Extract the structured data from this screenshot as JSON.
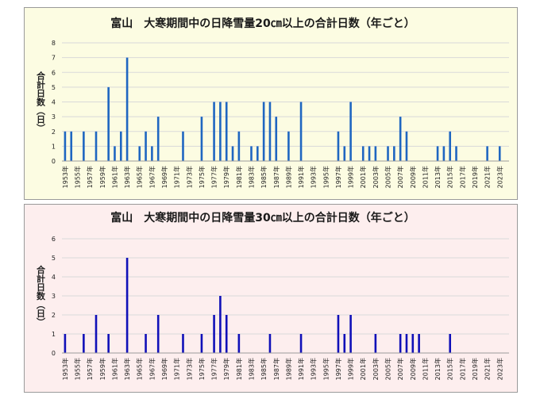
{
  "chart_data": [
    {
      "type": "bar",
      "title": "富山　大寒期間中の日降雪量20㎝以上の合計日数（年ごと）",
      "xlabel": "",
      "ylabel": "合計日数（日）",
      "ylim": [
        0,
        8
      ],
      "yticks": [
        0,
        1,
        2,
        3,
        4,
        5,
        6,
        7,
        8
      ],
      "xtick_labels": [
        "1953年",
        "1955年",
        "1957年",
        "1959年",
        "1961年",
        "1963年",
        "1965年",
        "1967年",
        "1969年",
        "1971年",
        "1973年",
        "1975年",
        "1977年",
        "1979年",
        "1981年",
        "1983年",
        "1985年",
        "1987年",
        "1989年",
        "1991年",
        "1993年",
        "1995年",
        "1997年",
        "1999年",
        "2001年",
        "2003年",
        "2005年",
        "2007年",
        "2009年",
        "2011年",
        "2013年",
        "2015年",
        "2017年",
        "2019年",
        "2021年",
        "2023年"
      ],
      "bar_color": "#1f66c1",
      "grid_color": "#d9d9d9",
      "x": [
        1953,
        1954,
        1955,
        1956,
        1957,
        1958,
        1959,
        1960,
        1961,
        1962,
        1963,
        1964,
        1965,
        1966,
        1967,
        1968,
        1969,
        1970,
        1971,
        1972,
        1973,
        1974,
        1975,
        1976,
        1977,
        1978,
        1979,
        1980,
        1981,
        1982,
        1983,
        1984,
        1985,
        1986,
        1987,
        1988,
        1989,
        1990,
        1991,
        1992,
        1993,
        1994,
        1995,
        1996,
        1997,
        1998,
        1999,
        2000,
        2001,
        2002,
        2003,
        2004,
        2005,
        2006,
        2007,
        2008,
        2009,
        2010,
        2011,
        2012,
        2013,
        2014,
        2015,
        2016,
        2017,
        2018,
        2019,
        2020,
        2021,
        2022,
        2023,
        2024
      ],
      "values": [
        2,
        2,
        0,
        2,
        0,
        2,
        0,
        5,
        1,
        2,
        7,
        0,
        1,
        2,
        1,
        3,
        0,
        0,
        0,
        2,
        0,
        0,
        3,
        0,
        4,
        4,
        4,
        1,
        2,
        0,
        1,
        1,
        4,
        4,
        3,
        0,
        2,
        0,
        4,
        0,
        0,
        0,
        0,
        0,
        2,
        1,
        4,
        0,
        1,
        1,
        1,
        0,
        1,
        1,
        3,
        2,
        0,
        0,
        0,
        0,
        1,
        1,
        2,
        1,
        0,
        0,
        0,
        0,
        1,
        0,
        1,
        0
      ]
    },
    {
      "type": "bar",
      "title": "富山　大寒期間中の日降雪量30㎝以上の合計日数（年ごと）",
      "xlabel": "",
      "ylabel": "合計日数（日）",
      "ylim": [
        0,
        6
      ],
      "yticks": [
        0,
        1,
        2,
        3,
        4,
        5,
        6
      ],
      "xtick_labels": [
        "1953年",
        "1955年",
        "1957年",
        "1959年",
        "1961年",
        "1963年",
        "1965年",
        "1967年",
        "1969年",
        "1971年",
        "1973年",
        "1975年",
        "1977年",
        "1979年",
        "1981年",
        "1983年",
        "1985年",
        "1987年",
        "1989年",
        "1991年",
        "1993年",
        "1995年",
        "1997年",
        "1999年",
        "2001年",
        "2003年",
        "2005年",
        "2007年",
        "2009年",
        "2011年",
        "2013年",
        "2015年",
        "2017年",
        "2019年",
        "2021年",
        "2023年"
      ],
      "bar_color": "#1010b8",
      "grid_color": "#d9d9d9",
      "x": [
        1953,
        1954,
        1955,
        1956,
        1957,
        1958,
        1959,
        1960,
        1961,
        1962,
        1963,
        1964,
        1965,
        1966,
        1967,
        1968,
        1969,
        1970,
        1971,
        1972,
        1973,
        1974,
        1975,
        1976,
        1977,
        1978,
        1979,
        1980,
        1981,
        1982,
        1983,
        1984,
        1985,
        1986,
        1987,
        1988,
        1989,
        1990,
        1991,
        1992,
        1993,
        1994,
        1995,
        1996,
        1997,
        1998,
        1999,
        2000,
        2001,
        2002,
        2003,
        2004,
        2005,
        2006,
        2007,
        2008,
        2009,
        2010,
        2011,
        2012,
        2013,
        2014,
        2015,
        2016,
        2017,
        2018,
        2019,
        2020,
        2021,
        2022,
        2023,
        2024
      ],
      "values": [
        1,
        0,
        0,
        1,
        0,
        2,
        0,
        1,
        0,
        0,
        5,
        0,
        0,
        1,
        0,
        2,
        0,
        0,
        0,
        1,
        0,
        0,
        1,
        0,
        2,
        3,
        2,
        0,
        1,
        0,
        0,
        0,
        0,
        1,
        0,
        0,
        0,
        0,
        1,
        0,
        0,
        0,
        0,
        0,
        2,
        1,
        2,
        0,
        0,
        0,
        1,
        0,
        0,
        0,
        1,
        1,
        1,
        1,
        0,
        0,
        0,
        0,
        1,
        0,
        0,
        0,
        0,
        0,
        0,
        0,
        0,
        0
      ]
    }
  ]
}
